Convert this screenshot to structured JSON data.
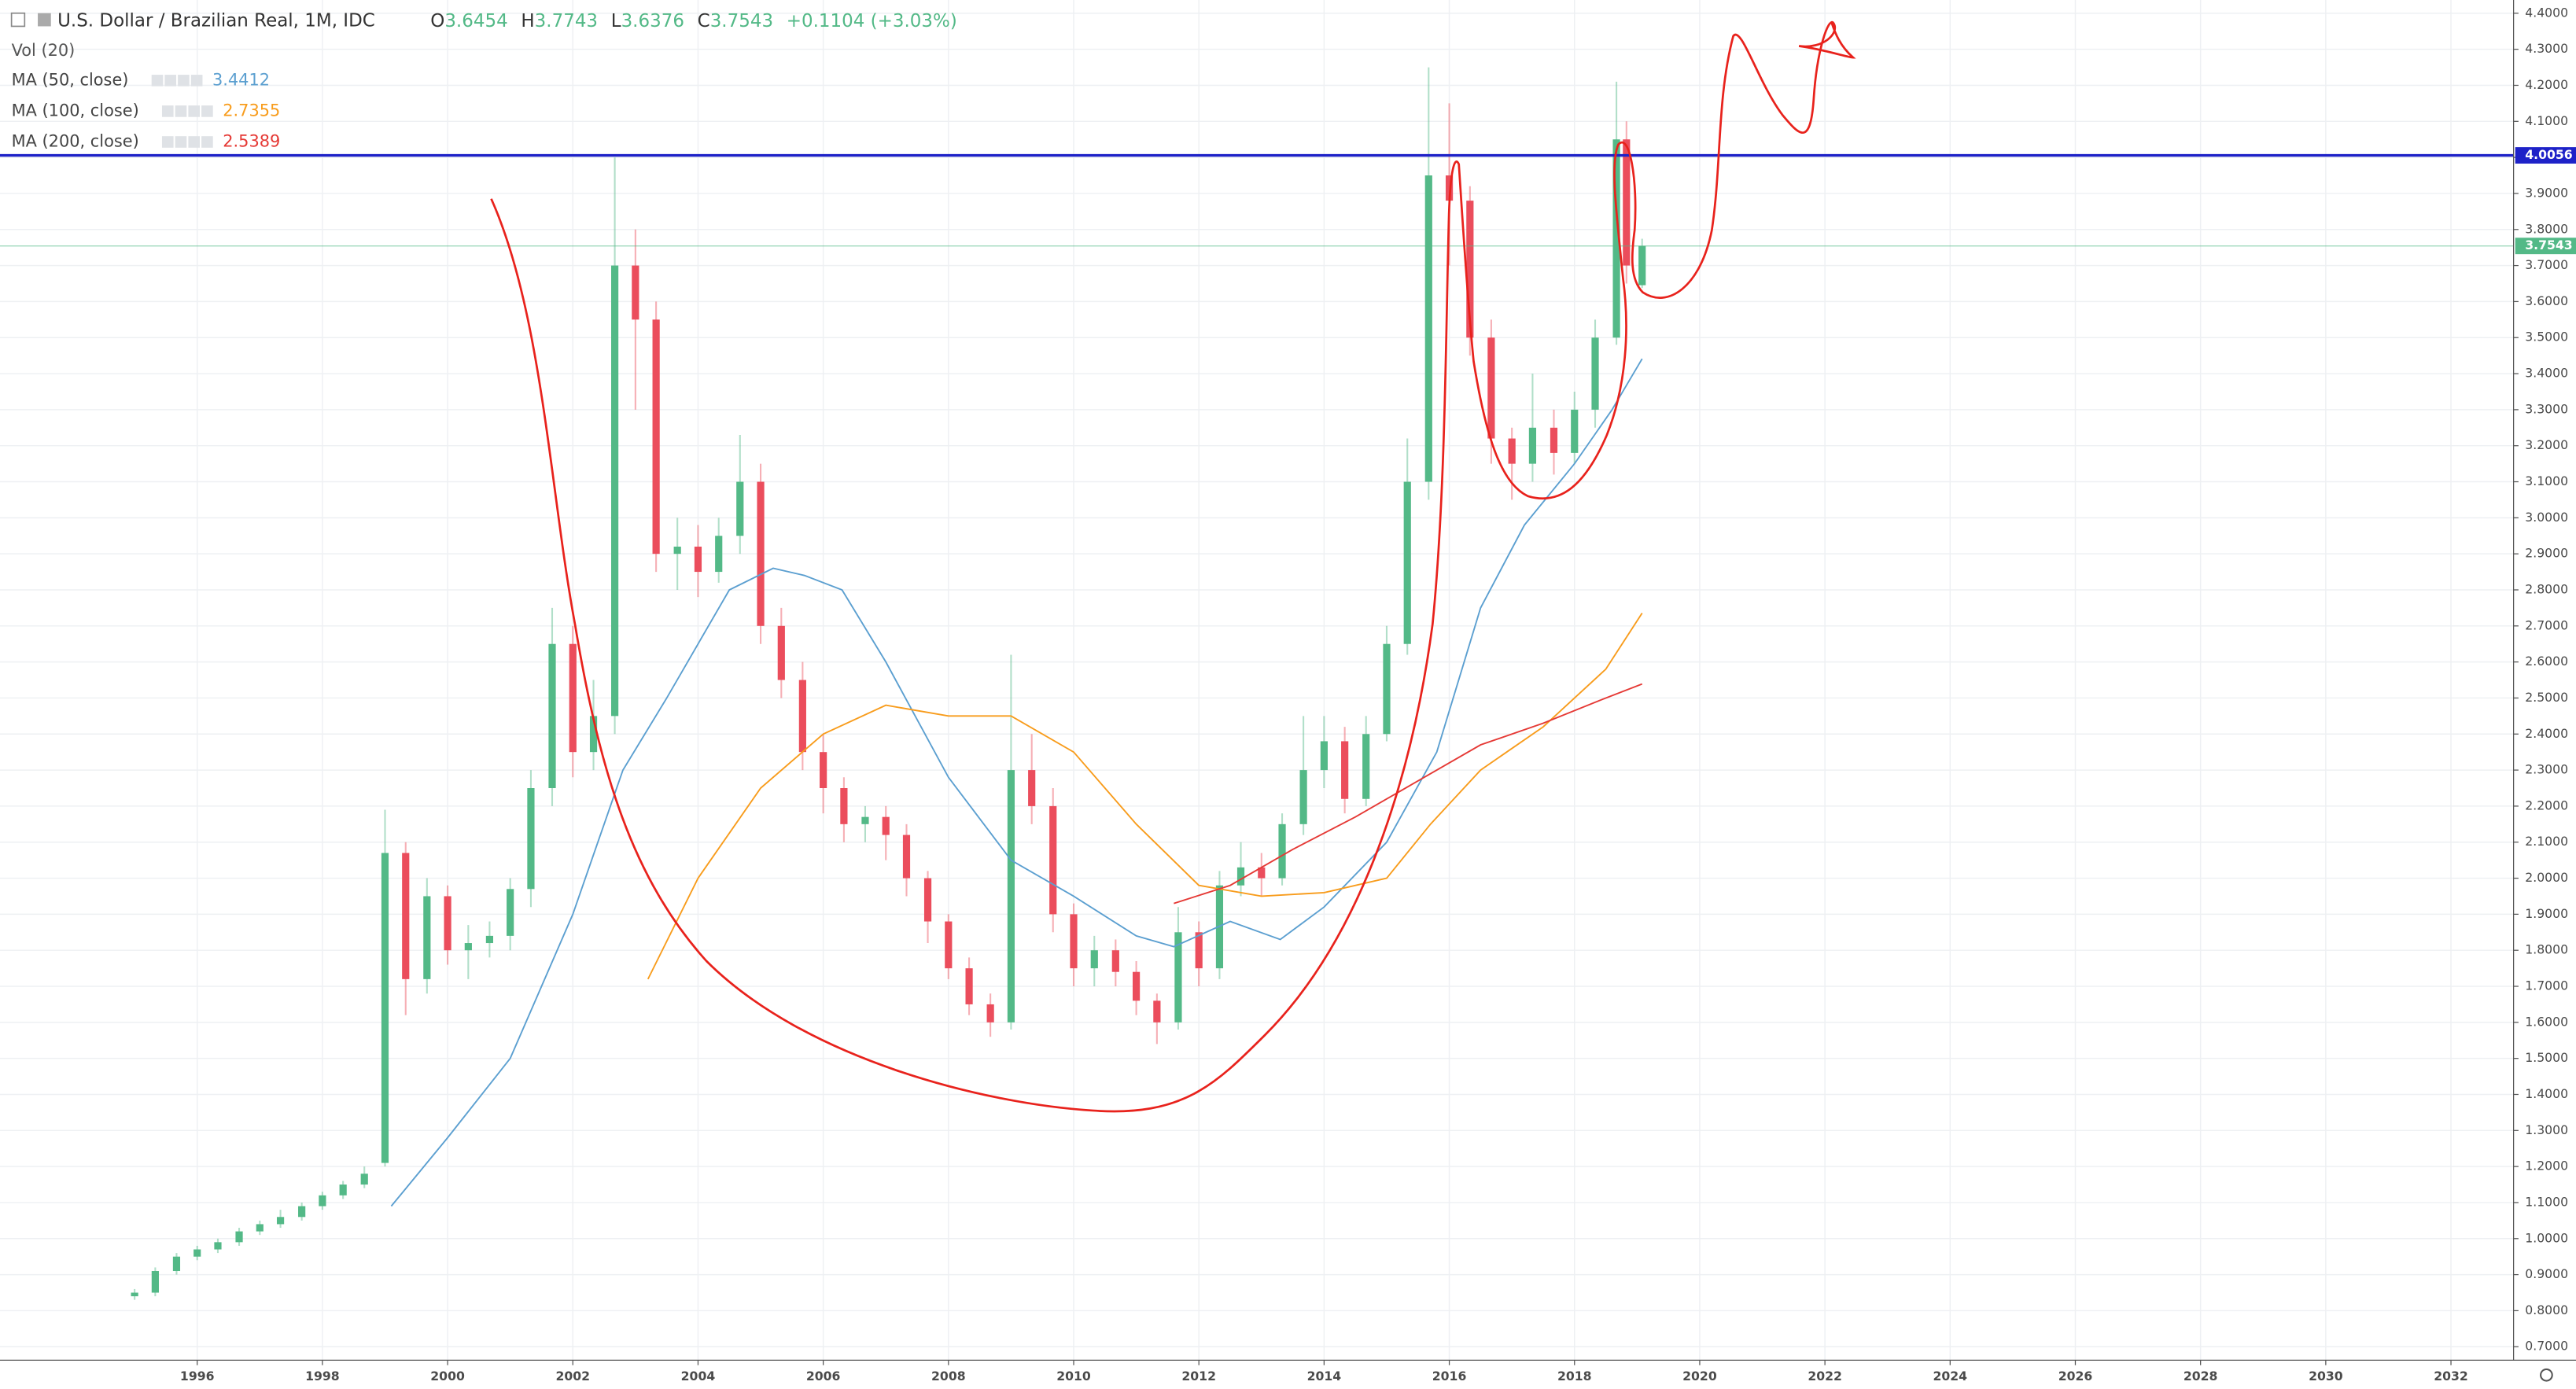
{
  "chart_data": {
    "type": "candlestick",
    "title": "U.S. Dollar / Brazilian Real, 1M, IDC",
    "ohlc": [
      {
        "label": "O",
        "value": 3.6454
      },
      {
        "label": "H",
        "value": 3.7743
      },
      {
        "label": "L",
        "value": 3.6376
      },
      {
        "label": "C",
        "value": 3.7543
      }
    ],
    "change": "+0.1104 (+3.03%)",
    "volume_label": "Vol (20)",
    "up_color": "#53b987",
    "down_color": "#eb4d5c",
    "x": [
      1995.0,
      1995.33,
      1995.67,
      1996.0,
      1996.33,
      1996.67,
      1997.0,
      1997.33,
      1997.67,
      1998.0,
      1998.33,
      1998.67,
      1999.0,
      1999.33,
      1999.67,
      2000.0,
      2000.33,
      2000.67,
      2001.0,
      2001.33,
      2001.67,
      2002.0,
      2002.33,
      2002.67,
      2003.0,
      2003.33,
      2003.67,
      2004.0,
      2004.33,
      2004.67,
      2005.0,
      2005.33,
      2005.67,
      2006.0,
      2006.33,
      2006.67,
      2007.0,
      2007.33,
      2007.67,
      2008.0,
      2008.33,
      2008.67,
      2009.0,
      2009.33,
      2009.67,
      2010.0,
      2010.33,
      2010.67,
      2011.0,
      2011.33,
      2011.67,
      2012.0,
      2012.33,
      2012.67,
      2013.0,
      2013.33,
      2013.67,
      2014.0,
      2014.33,
      2014.67,
      2015.0,
      2015.33,
      2015.67,
      2016.0,
      2016.33,
      2016.67,
      2017.0,
      2017.33,
      2017.67,
      2018.0,
      2018.33,
      2018.67,
      2018.83,
      2019.08
    ],
    "open": [
      0.84,
      0.85,
      0.91,
      0.95,
      0.97,
      0.99,
      1.02,
      1.04,
      1.06,
      1.09,
      1.12,
      1.15,
      1.21,
      2.07,
      1.72,
      1.95,
      1.8,
      1.82,
      1.84,
      1.97,
      2.25,
      2.65,
      2.35,
      2.45,
      3.7,
      3.55,
      2.9,
      2.92,
      2.85,
      2.95,
      3.1,
      2.7,
      2.55,
      2.35,
      2.25,
      2.15,
      2.17,
      2.12,
      2.0,
      1.88,
      1.75,
      1.65,
      1.6,
      2.3,
      2.2,
      1.9,
      1.75,
      1.8,
      1.74,
      1.66,
      1.6,
      1.85,
      1.75,
      1.98,
      2.03,
      2.0,
      2.15,
      2.3,
      2.38,
      2.22,
      2.4,
      2.65,
      3.1,
      3.95,
      3.88,
      3.5,
      3.22,
      3.15,
      3.25,
      3.18,
      3.3,
      3.5,
      4.05,
      3.6454
    ],
    "high": [
      0.86,
      0.92,
      0.96,
      0.98,
      1.0,
      1.03,
      1.05,
      1.08,
      1.1,
      1.13,
      1.16,
      1.2,
      2.19,
      2.1,
      2.0,
      1.98,
      1.87,
      1.88,
      2.0,
      2.3,
      2.75,
      2.7,
      2.55,
      4.0,
      3.8,
      3.6,
      3.0,
      2.98,
      3.0,
      3.23,
      3.15,
      2.75,
      2.6,
      2.4,
      2.28,
      2.2,
      2.2,
      2.15,
      2.02,
      1.9,
      1.78,
      1.68,
      2.62,
      2.4,
      2.25,
      1.93,
      1.84,
      1.83,
      1.77,
      1.68,
      1.92,
      1.88,
      2.02,
      2.1,
      2.07,
      2.18,
      2.45,
      2.45,
      2.42,
      2.45,
      2.7,
      3.22,
      4.25,
      4.15,
      3.92,
      3.55,
      3.25,
      3.4,
      3.3,
      3.35,
      3.55,
      4.21,
      4.1,
      3.7743
    ],
    "low": [
      0.83,
      0.84,
      0.9,
      0.94,
      0.96,
      0.98,
      1.01,
      1.03,
      1.05,
      1.08,
      1.11,
      1.14,
      1.2,
      1.62,
      1.68,
      1.76,
      1.72,
      1.78,
      1.8,
      1.92,
      2.2,
      2.28,
      2.3,
      2.4,
      3.3,
      2.85,
      2.8,
      2.78,
      2.82,
      2.9,
      2.65,
      2.5,
      2.3,
      2.18,
      2.1,
      2.1,
      2.05,
      1.95,
      1.82,
      1.72,
      1.62,
      1.56,
      1.58,
      2.15,
      1.85,
      1.7,
      1.7,
      1.7,
      1.62,
      1.54,
      1.58,
      1.7,
      1.72,
      1.95,
      1.95,
      1.98,
      2.12,
      2.25,
      2.18,
      2.2,
      2.38,
      2.62,
      3.05,
      3.7,
      3.45,
      3.15,
      3.05,
      3.1,
      3.12,
      3.15,
      3.25,
      3.48,
      3.65,
      3.6376
    ],
    "close": [
      0.85,
      0.91,
      0.95,
      0.97,
      0.99,
      1.02,
      1.04,
      1.06,
      1.09,
      1.12,
      1.15,
      1.18,
      2.07,
      1.72,
      1.95,
      1.8,
      1.82,
      1.84,
      1.97,
      2.25,
      2.65,
      2.35,
      2.45,
      3.7,
      3.55,
      2.9,
      2.92,
      2.85,
      2.95,
      3.1,
      2.7,
      2.55,
      2.35,
      2.25,
      2.15,
      2.17,
      2.12,
      2.0,
      1.88,
      1.75,
      1.65,
      1.6,
      2.3,
      2.2,
      1.9,
      1.75,
      1.8,
      1.74,
      1.66,
      1.6,
      1.85,
      1.75,
      1.98,
      2.03,
      2.0,
      2.15,
      2.3,
      2.38,
      2.22,
      2.4,
      2.65,
      3.1,
      3.95,
      3.88,
      3.5,
      3.22,
      3.15,
      3.25,
      3.18,
      3.3,
      3.5,
      4.05,
      3.7,
      3.7543
    ],
    "series": [
      {
        "name": "MA (50, close)",
        "color": "#5b9fd0",
        "last": 3.4412,
        "x": [
          1999.1,
          2000,
          2001,
          2002,
          2002.8,
          2003.5,
          2004.5,
          2005.2,
          2005.7,
          2006.3,
          2007,
          2008,
          2009,
          2010,
          2011,
          2011.6,
          2012.5,
          2013.3,
          2014,
          2015,
          2015.8,
          2016.5,
          2017.2,
          2018,
          2018.6,
          2019.08
        ],
        "values": [
          1.09,
          1.28,
          1.5,
          1.9,
          2.3,
          2.5,
          2.8,
          2.86,
          2.84,
          2.8,
          2.6,
          2.28,
          2.05,
          1.95,
          1.84,
          1.81,
          1.88,
          1.83,
          1.92,
          2.1,
          2.35,
          2.75,
          2.98,
          3.15,
          3.3,
          3.4412
        ]
      },
      {
        "name": "MA (100, close)",
        "color": "#f89c1c",
        "last": 2.7355,
        "x": [
          2003.2,
          2004,
          2005,
          2006,
          2007,
          2008,
          2009,
          2010,
          2011,
          2012,
          2013,
          2014,
          2015,
          2015.7,
          2016.5,
          2017.5,
          2018.5,
          2019.08
        ],
        "values": [
          1.72,
          2.0,
          2.25,
          2.4,
          2.48,
          2.45,
          2.45,
          2.35,
          2.15,
          1.98,
          1.95,
          1.96,
          2.0,
          2.15,
          2.3,
          2.42,
          2.58,
          2.7355
        ]
      },
      {
        "name": "MA (200, close)",
        "color": "#e53935",
        "last": 2.5389,
        "x": [
          2011.6,
          2012.5,
          2013.5,
          2014.5,
          2015.5,
          2016.5,
          2017.5,
          2018.5,
          2019.08
        ],
        "values": [
          1.93,
          1.98,
          2.08,
          2.17,
          2.27,
          2.37,
          2.43,
          2.5,
          2.5389
        ]
      }
    ],
    "hlines": [
      {
        "value": 4.0056,
        "color": "#1e22c8"
      },
      {
        "value": 3.7543,
        "color": "#53b987"
      }
    ],
    "xlim": [
      1992.85,
      2033.0
    ],
    "xticks": [
      1996,
      1998,
      2000,
      2002,
      2004,
      2006,
      2008,
      2010,
      2012,
      2014,
      2016,
      2018,
      2020,
      2022,
      2024,
      2026,
      2028,
      2030,
      2032
    ],
    "ylim": [
      0.6625,
      4.4367
    ],
    "yticks": [
      {
        "value": 0.7,
        "label": "0.7000"
      },
      {
        "value": 0.8,
        "label": "0.8000"
      },
      {
        "value": 0.9,
        "label": "0.9000"
      },
      {
        "value": 1.0,
        "label": "1.0000"
      },
      {
        "value": 1.1,
        "label": "1.1000"
      },
      {
        "value": 1.2,
        "label": "1.2000"
      },
      {
        "value": 1.3,
        "label": "1.3000"
      },
      {
        "value": 1.4,
        "label": "1.4000"
      },
      {
        "value": 1.5,
        "label": "1.5000"
      },
      {
        "value": 1.6,
        "label": "1.6000"
      },
      {
        "value": 1.7,
        "label": "1.7000"
      },
      {
        "value": 1.8,
        "label": "1.8000"
      },
      {
        "value": 1.9,
        "label": "1.9000"
      },
      {
        "value": 2.0,
        "label": "2.0000"
      },
      {
        "value": 2.1,
        "label": "2.1000"
      },
      {
        "value": 2.2,
        "label": "2.2000"
      },
      {
        "value": 2.3,
        "label": "2.3000"
      },
      {
        "value": 2.4,
        "label": "2.4000"
      },
      {
        "value": 2.5,
        "label": "2.5000"
      },
      {
        "value": 2.6,
        "label": "2.6000"
      },
      {
        "value": 2.7,
        "label": "2.7000"
      },
      {
        "value": 2.8,
        "label": "2.8000"
      },
      {
        "value": 2.9,
        "label": "2.9000"
      },
      {
        "value": 3.0,
        "label": "3.0000"
      },
      {
        "value": 3.1,
        "label": "3.1000"
      },
      {
        "value": 3.2,
        "label": "3.2000"
      },
      {
        "value": 3.3,
        "label": "3.3000"
      },
      {
        "value": 3.4,
        "label": "3.4000"
      },
      {
        "value": 3.5,
        "label": "3.5000"
      },
      {
        "value": 3.6,
        "label": "3.6000"
      },
      {
        "value": 3.7,
        "label": "3.7000"
      },
      {
        "value": 3.8,
        "label": "3.8000"
      },
      {
        "value": 3.9,
        "label": "3.9000"
      },
      {
        "value": 4.0,
        "label": "4.0000"
      },
      {
        "value": 4.1,
        "label": "4.1000"
      },
      {
        "value": 4.2,
        "label": "4.2000"
      },
      {
        "value": 4.3,
        "label": "4.3000"
      },
      {
        "value": 4.4,
        "label": "4.4000"
      }
    ],
    "grid": true
  }
}
